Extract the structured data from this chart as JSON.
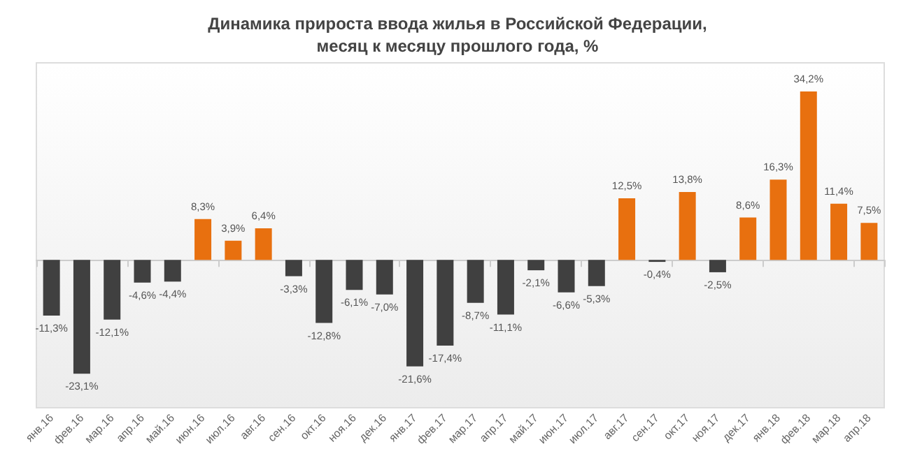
{
  "chart_data": {
    "type": "bar",
    "title": "Динамика прироста ввода жилья в Российской Федерации,\nмесяц к месяцу прошлого года, %",
    "categories": [
      "янв.16",
      "фев.16",
      "мар.16",
      "апр.16",
      "май.16",
      "июн.16",
      "июл.16",
      "авг.16",
      "сен.16",
      "окт.16",
      "ноя.16",
      "дек.16",
      "янв.17",
      "фев.17",
      "мар.17",
      "апр.17",
      "май.17",
      "июн.17",
      "июл.17",
      "авг.17",
      "сен.17",
      "окт.17",
      "ноя.17",
      "дек.17",
      "янв.18",
      "фев.18",
      "мар.18",
      "апр.18"
    ],
    "values": [
      -11.3,
      -23.1,
      -12.1,
      -4.6,
      -4.4,
      8.3,
      3.9,
      6.4,
      -3.3,
      -12.8,
      -6.1,
      -7.0,
      -21.6,
      -17.4,
      -8.7,
      -11.1,
      -2.1,
      -6.6,
      -5.3,
      12.5,
      -0.4,
      13.8,
      -2.5,
      8.6,
      16.3,
      34.2,
      11.4,
      7.5
    ],
    "value_labels": [
      "-11,3%",
      "-23,1%",
      "-12,1%",
      "-4,6%",
      "-4,4%",
      "8,3%",
      "3,9%",
      "6,4%",
      "-3,3%",
      "-12,8%",
      "-6,1%",
      "-7,0%",
      "-21,6%",
      "-17,4%",
      "-8,7%",
      "-11,1%",
      "-2,1%",
      "-6,6%",
      "-5,3%",
      "12,5%",
      "-0,4%",
      "13,8%",
      "-2,5%",
      "8,6%",
      "16,3%",
      "34,2%",
      "11,4%",
      "7,5%"
    ],
    "colors": [
      "#404040",
      "#404040",
      "#404040",
      "#404040",
      "#404040",
      "#e8700f",
      "#e8700f",
      "#e8700f",
      "#404040",
      "#404040",
      "#404040",
      "#404040",
      "#404040",
      "#404040",
      "#404040",
      "#404040",
      "#404040",
      "#404040",
      "#404040",
      "#e8700f",
      "#404040",
      "#e8700f",
      "#404040",
      "#e8700f",
      "#e8700f",
      "#e8700f",
      "#e8700f",
      "#e8700f"
    ]
  }
}
